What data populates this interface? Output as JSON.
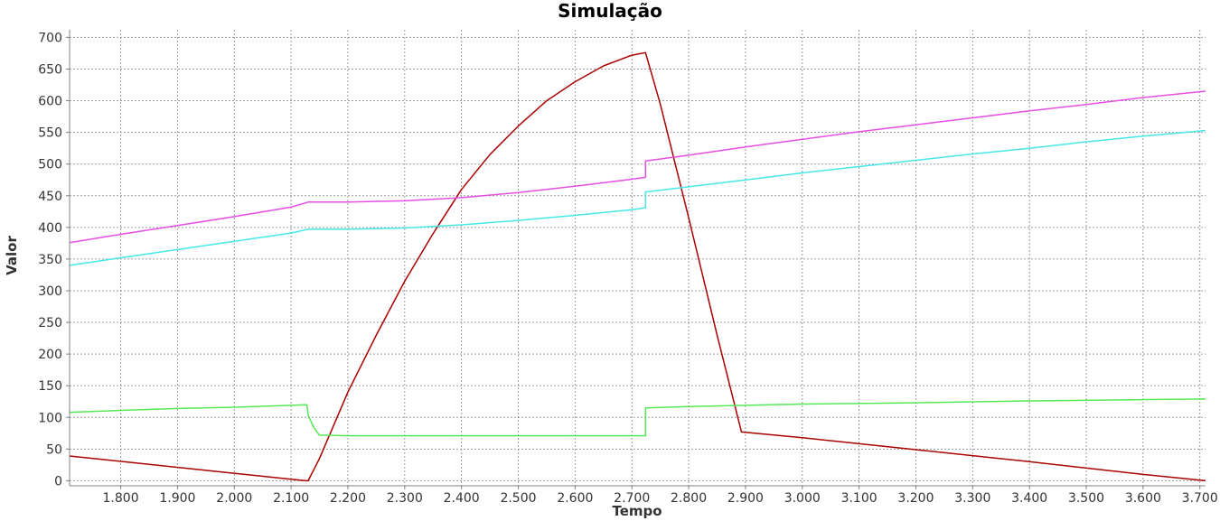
{
  "chart_data": {
    "type": "line",
    "title": "Simulação",
    "xlabel": "Tempo",
    "ylabel": "Valor",
    "xlim": [
      1.71,
      3.71
    ],
    "ylim": [
      -8,
      712
    ],
    "x_ticks": [
      1.8,
      1.9,
      2.0,
      2.1,
      2.2,
      2.3,
      2.4,
      2.5,
      2.6,
      2.7,
      2.8,
      2.9,
      3.0,
      3.1,
      3.2,
      3.3,
      3.4,
      3.5,
      3.6,
      3.7
    ],
    "x_tick_labels": [
      "1.800",
      "1.900",
      "2.000",
      "2.100",
      "2.200",
      "2.300",
      "2.400",
      "2.500",
      "2.600",
      "2.700",
      "2.800",
      "2.900",
      "3.000",
      "3.100",
      "3.200",
      "3.300",
      "3.400",
      "3.500",
      "3.600",
      "3.700"
    ],
    "y_ticks": [
      0,
      50,
      100,
      150,
      200,
      250,
      300,
      350,
      400,
      450,
      500,
      550,
      600,
      650,
      700
    ],
    "y_tick_labels": [
      "0",
      "50",
      "100",
      "150",
      "200",
      "250",
      "300",
      "350",
      "400",
      "450",
      "500",
      "550",
      "600",
      "650",
      "700"
    ],
    "grid": true,
    "series": [
      {
        "color": "#aa0000",
        "points": [
          [
            1.71,
            39
          ],
          [
            2.125,
            0
          ],
          [
            2.13,
            0
          ],
          [
            2.15,
            35
          ],
          [
            2.2,
            140
          ],
          [
            2.25,
            230
          ],
          [
            2.3,
            315
          ],
          [
            2.35,
            390
          ],
          [
            2.4,
            460
          ],
          [
            2.45,
            515
          ],
          [
            2.5,
            560
          ],
          [
            2.55,
            600
          ],
          [
            2.6,
            630
          ],
          [
            2.65,
            655
          ],
          [
            2.7,
            672
          ],
          [
            2.724,
            676
          ],
          [
            2.75,
            595
          ],
          [
            2.8,
            415
          ],
          [
            2.85,
            230
          ],
          [
            2.893,
            77
          ],
          [
            3.0,
            68
          ],
          [
            3.2,
            49
          ],
          [
            3.4,
            30
          ],
          [
            3.6,
            10
          ],
          [
            3.71,
            0
          ]
        ]
      },
      {
        "color": "#e64ee6",
        "points": [
          [
            1.71,
            376
          ],
          [
            1.8,
            389
          ],
          [
            1.9,
            403
          ],
          [
            2.0,
            417
          ],
          [
            2.1,
            432
          ],
          [
            2.13,
            440
          ],
          [
            2.2,
            440
          ],
          [
            2.3,
            442
          ],
          [
            2.4,
            447
          ],
          [
            2.5,
            455
          ],
          [
            2.6,
            465
          ],
          [
            2.7,
            476
          ],
          [
            2.724,
            479
          ],
          [
            2.724,
            505
          ],
          [
            2.8,
            514
          ],
          [
            2.9,
            527
          ],
          [
            3.0,
            539
          ],
          [
            3.1,
            551
          ],
          [
            3.2,
            562
          ],
          [
            3.3,
            573
          ],
          [
            3.4,
            584
          ],
          [
            3.5,
            594
          ],
          [
            3.6,
            605
          ],
          [
            3.71,
            615
          ]
        ]
      },
      {
        "color": "#44e8e8",
        "points": [
          [
            1.71,
            340
          ],
          [
            1.8,
            352
          ],
          [
            1.9,
            365
          ],
          [
            2.0,
            378
          ],
          [
            2.1,
            391
          ],
          [
            2.13,
            397
          ],
          [
            2.2,
            397
          ],
          [
            2.3,
            399
          ],
          [
            2.4,
            404
          ],
          [
            2.5,
            411
          ],
          [
            2.6,
            419
          ],
          [
            2.7,
            428
          ],
          [
            2.724,
            431
          ],
          [
            2.724,
            456
          ],
          [
            2.8,
            464
          ],
          [
            2.9,
            475
          ],
          [
            3.0,
            486
          ],
          [
            3.1,
            496
          ],
          [
            3.2,
            506
          ],
          [
            3.3,
            516
          ],
          [
            3.4,
            525
          ],
          [
            3.5,
            535
          ],
          [
            3.6,
            544
          ],
          [
            3.71,
            553
          ]
        ]
      },
      {
        "color": "#55e855",
        "points": [
          [
            1.71,
            108
          ],
          [
            1.8,
            111
          ],
          [
            1.9,
            114
          ],
          [
            2.0,
            116
          ],
          [
            2.1,
            119
          ],
          [
            2.128,
            120
          ],
          [
            2.13,
            103
          ],
          [
            2.14,
            84
          ],
          [
            2.15,
            72
          ],
          [
            2.2,
            71
          ],
          [
            2.4,
            71
          ],
          [
            2.6,
            71
          ],
          [
            2.724,
            71
          ],
          [
            2.724,
            115
          ],
          [
            2.8,
            117
          ],
          [
            2.9,
            119
          ],
          [
            3.0,
            121
          ],
          [
            3.2,
            123
          ],
          [
            3.4,
            126
          ],
          [
            3.6,
            128
          ],
          [
            3.71,
            129
          ]
        ]
      }
    ]
  }
}
